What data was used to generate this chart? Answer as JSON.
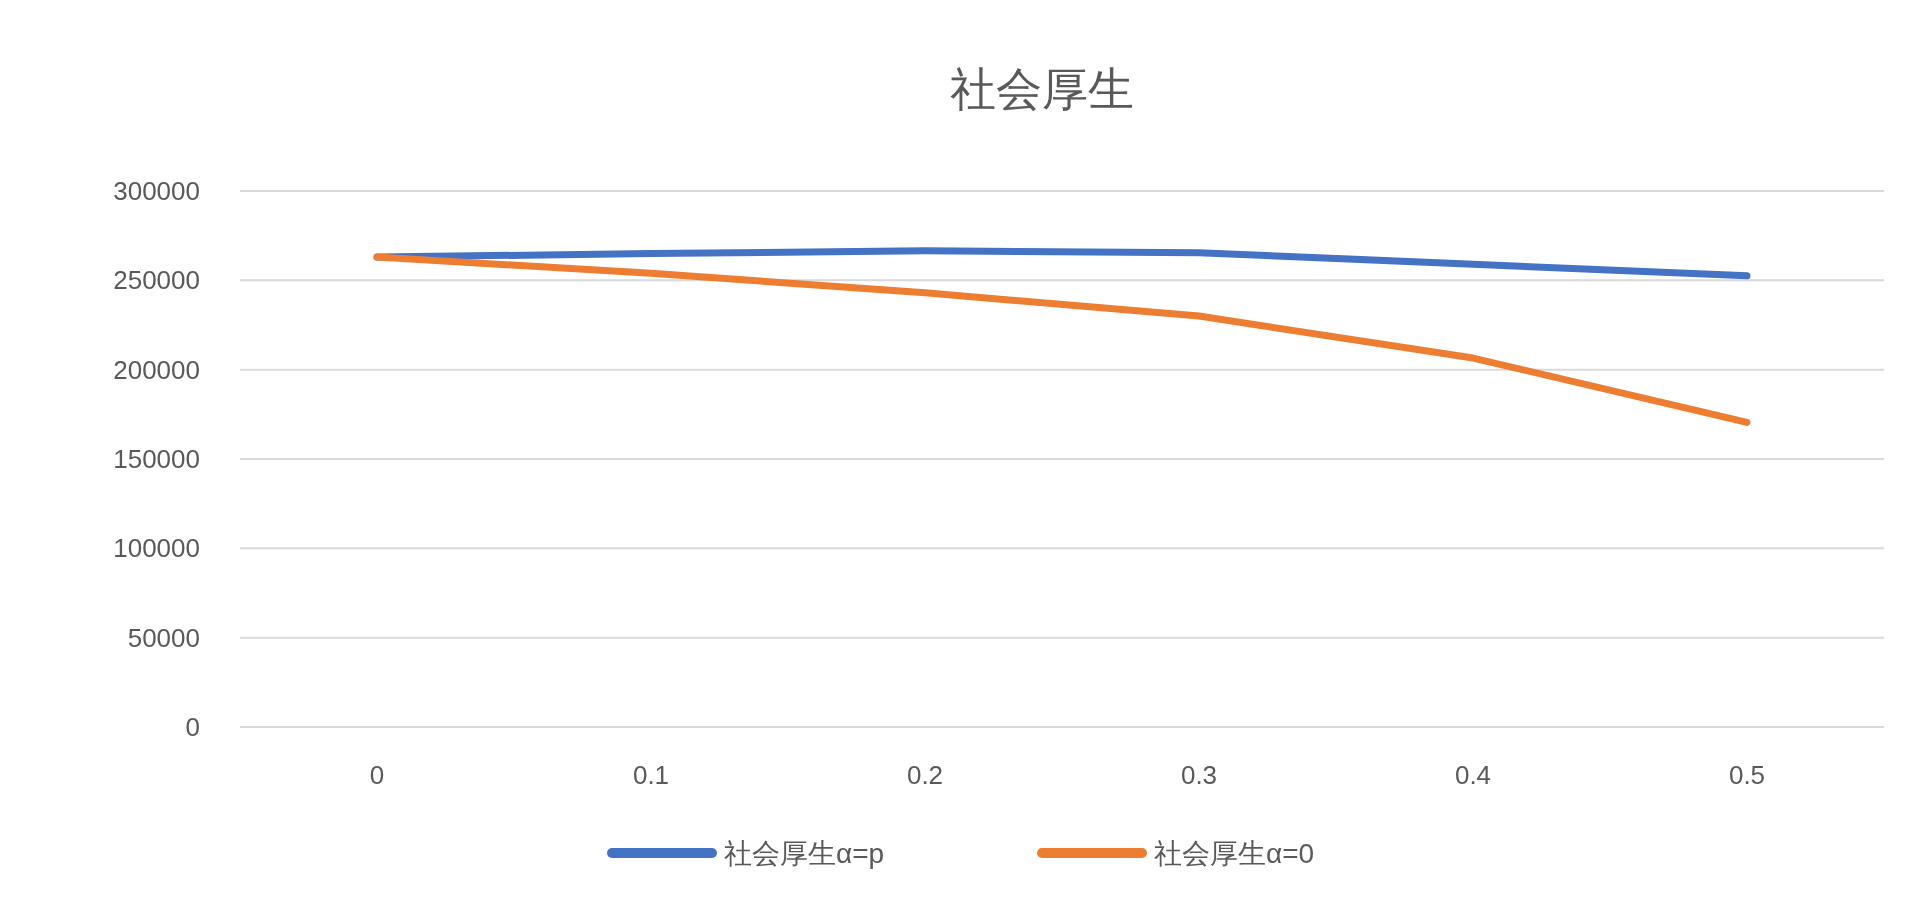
{
  "chart_data": {
    "type": "line",
    "title": "社会厚生",
    "categories": [
      "0",
      "0.1",
      "0.2",
      "0.3",
      "0.4",
      "0.5"
    ],
    "series": [
      {
        "name": "社会厚生α=p",
        "color": "#4472c4",
        "values": [
          263000,
          265000,
          266500,
          265500,
          259000,
          252500
        ]
      },
      {
        "name": "社会厚生α=0",
        "color": "#ed7d31",
        "values": [
          263000,
          254000,
          243000,
          230000,
          206500,
          170500
        ]
      }
    ],
    "ylim": [
      0,
      300000
    ],
    "yticks": [
      0,
      50000,
      100000,
      150000,
      200000,
      250000,
      300000
    ],
    "grid": "y",
    "legend": "bottom",
    "marker": "none",
    "line_style": "solid"
  }
}
